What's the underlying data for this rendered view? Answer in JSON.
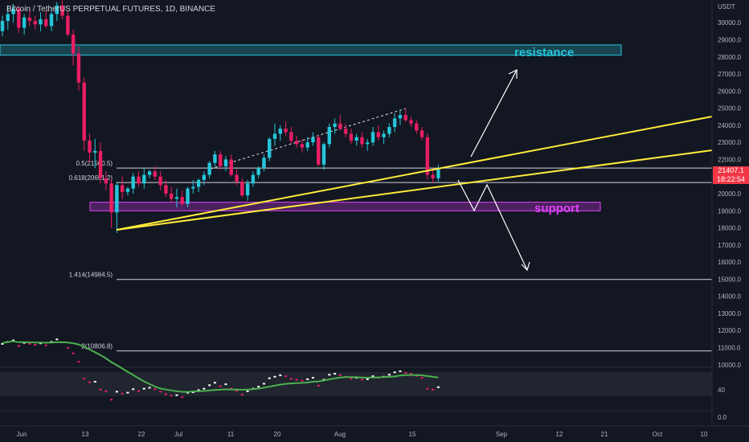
{
  "header": {
    "title": "Bitcoin / TetherUS PERPETUAL FUTURES, 1D, BINANCE"
  },
  "price_axis": {
    "unit": "USDT",
    "ticks": [
      30000,
      29000,
      28000,
      27000,
      26000,
      25000,
      24000,
      23000,
      22000,
      21000,
      20000,
      19000,
      18000,
      17000,
      16000,
      15000,
      14000,
      13000,
      12000,
      11000,
      10000
    ],
    "current_price": "21407.1",
    "countdown": "18:22:54"
  },
  "oscillator_axis": {
    "ticks": [
      "40",
      "0.0"
    ]
  },
  "time_axis": {
    "labels": [
      "Jun",
      "13",
      "22",
      "Jul",
      "11",
      "20",
      "Aug",
      "15",
      "Sep",
      "12",
      "21",
      "Oct",
      "10"
    ]
  },
  "annotations": {
    "resistance": "resistance",
    "support": "support",
    "fib": [
      {
        "label": "0.5(21500.5)",
        "price": 21500.5
      },
      {
        "label": "0.618(20651.2)",
        "price": 20651.2
      },
      {
        "label": "1.414(14984.5)",
        "price": 14984.5
      },
      {
        "label": "2(10806.8)",
        "price": 10806.8
      }
    ]
  },
  "colors": {
    "background": "#131722",
    "up": "#26c6da",
    "down": "#e91e63",
    "resistance_zone": "#26c6da",
    "support_zone": "#e040fb",
    "trendline": "#ffeb3b",
    "ma_line": "#4caf50",
    "arrow": "#ffffff",
    "current_price": "#f23645"
  },
  "chart_data": {
    "type": "candlestick",
    "interval": "1D",
    "y_range": [
      9600,
      31200
    ],
    "resistance_zone": [
      28100,
      28700
    ],
    "support_zone": [
      19000,
      19500
    ],
    "candles": [
      [
        29500,
        30400,
        29200,
        30100
      ],
      [
        30100,
        31000,
        29600,
        30500
      ],
      [
        30500,
        31100,
        30000,
        30800
      ],
      [
        30800,
        31000,
        29400,
        29700
      ],
      [
        29700,
        30500,
        29300,
        30300
      ],
      [
        30300,
        30800,
        29800,
        30100
      ],
      [
        30100,
        30400,
        29600,
        29900
      ],
      [
        29900,
        30600,
        29500,
        30200
      ],
      [
        30200,
        30700,
        29700,
        29800
      ],
      [
        29800,
        30900,
        29500,
        30500
      ],
      [
        30500,
        31200,
        30100,
        31000
      ],
      [
        31000,
        31300,
        30200,
        30400
      ],
      [
        30400,
        30700,
        29200,
        29300
      ],
      [
        29300,
        29600,
        27500,
        28200
      ],
      [
        28200,
        28600,
        26000,
        26500
      ],
      [
        26500,
        26800,
        22500,
        23100
      ],
      [
        23100,
        23500,
        21800,
        22400
      ],
      [
        22400,
        23200,
        21500,
        22500
      ],
      [
        22500,
        23000,
        20600,
        20900
      ],
      [
        20900,
        21300,
        20200,
        20600
      ],
      [
        20600,
        20900,
        18000,
        18900
      ],
      [
        18900,
        20700,
        17700,
        20500
      ],
      [
        20500,
        21000,
        19700,
        20100
      ],
      [
        20100,
        20400,
        19900,
        20300
      ],
      [
        20300,
        21200,
        20000,
        21000
      ],
      [
        21000,
        21300,
        20400,
        20600
      ],
      [
        20600,
        21500,
        20300,
        21100
      ],
      [
        21100,
        21400,
        20900,
        21300
      ],
      [
        21300,
        21600,
        20800,
        21000
      ],
      [
        21000,
        21300,
        20200,
        20500
      ],
      [
        20500,
        20800,
        19800,
        20000
      ],
      [
        20000,
        20400,
        19500,
        19700
      ],
      [
        19700,
        20300,
        19200,
        19800
      ],
      [
        19800,
        20200,
        19300,
        19400
      ],
      [
        19400,
        20400,
        19200,
        20300
      ],
      [
        20300,
        20800,
        20000,
        20400
      ],
      [
        20400,
        20900,
        20100,
        20800
      ],
      [
        20800,
        21300,
        20500,
        21100
      ],
      [
        21100,
        21900,
        20900,
        21800
      ],
      [
        21800,
        22500,
        21600,
        22300
      ],
      [
        22300,
        22500,
        21400,
        21600
      ],
      [
        21600,
        22200,
        21300,
        22000
      ],
      [
        22000,
        22300,
        21000,
        21100
      ],
      [
        21100,
        21400,
        20500,
        20700
      ],
      [
        20700,
        20900,
        19800,
        19900
      ],
      [
        19900,
        20800,
        19600,
        20600
      ],
      [
        20600,
        21300,
        20400,
        21100
      ],
      [
        21100,
        21600,
        20900,
        21500
      ],
      [
        21500,
        22300,
        21300,
        22100
      ],
      [
        22100,
        23300,
        21900,
        23200
      ],
      [
        23200,
        24100,
        22800,
        23500
      ],
      [
        23500,
        24000,
        23100,
        23800
      ],
      [
        23800,
        24200,
        23400,
        23600
      ],
      [
        23600,
        23900,
        22900,
        23100
      ],
      [
        23100,
        23400,
        22700,
        22900
      ],
      [
        22900,
        23200,
        22400,
        22700
      ],
      [
        22700,
        23300,
        22500,
        23000
      ],
      [
        23000,
        23600,
        22800,
        23300
      ],
      [
        23300,
        23400,
        21600,
        21700
      ],
      [
        21700,
        23000,
        21400,
        22900
      ],
      [
        22900,
        24100,
        22700,
        23900
      ],
      [
        23900,
        24400,
        23500,
        24100
      ],
      [
        24100,
        24600,
        23700,
        23800
      ],
      [
        23800,
        24100,
        23300,
        23500
      ],
      [
        23500,
        23800,
        22900,
        23100
      ],
      [
        23100,
        23500,
        22800,
        23300
      ],
      [
        23300,
        23600,
        22700,
        22900
      ],
      [
        22900,
        23200,
        22500,
        23000
      ],
      [
        23000,
        23900,
        22800,
        23600
      ],
      [
        23600,
        24000,
        23100,
        23300
      ],
      [
        23300,
        23700,
        22900,
        23500
      ],
      [
        23500,
        24100,
        23300,
        23900
      ],
      [
        23900,
        24700,
        23600,
        24400
      ],
      [
        24400,
        24900,
        24000,
        24600
      ],
      [
        24600,
        25000,
        24200,
        24300
      ],
      [
        24300,
        24500,
        23900,
        24100
      ],
      [
        24100,
        24300,
        23500,
        23700
      ],
      [
        23700,
        23900,
        23100,
        23300
      ],
      [
        23300,
        23500,
        20800,
        21100
      ],
      [
        21100,
        21500,
        20600,
        20900
      ],
      [
        20900,
        21700,
        20700,
        21407
      ]
    ]
  }
}
